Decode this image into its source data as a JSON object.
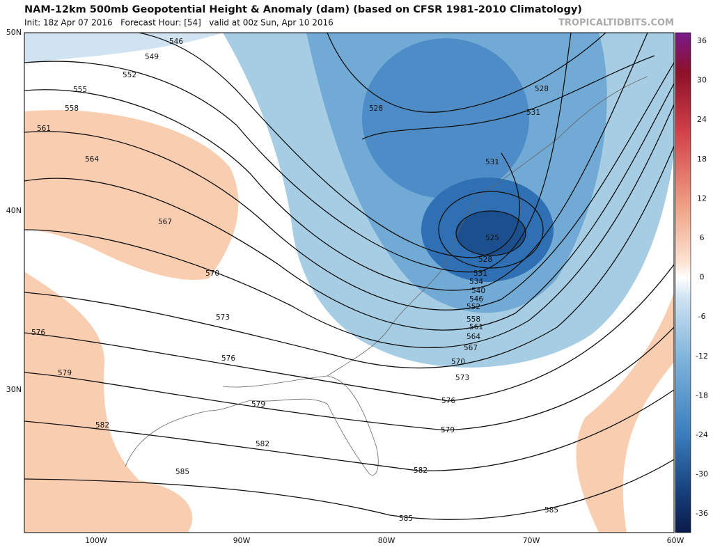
{
  "header": {
    "title": "NAM-12km 500mb Geopotential Height & Anomaly (dam) (based on CFSR 1981-2010 Climatology)",
    "subtitle": "Init: 18z Apr 07 2016   Forecast Hour: [54]   valid at 00z Sun, Apr 10 2016",
    "source": "TROPICALTIDBITS.COM"
  },
  "lat_labels": [
    "50N",
    "40N",
    "30N"
  ],
  "lon_labels": [
    "100W",
    "90W",
    "80W",
    "70W",
    "60W"
  ],
  "colorbar_ticks": [
    36,
    30,
    24,
    18,
    12,
    6,
    0,
    -6,
    -12,
    -18,
    -24,
    -30,
    -36
  ],
  "contour_labels": [
    546,
    549,
    552,
    555,
    558,
    561,
    564,
    567,
    570,
    573,
    576,
    579,
    582,
    585,
    576,
    579,
    582,
    585,
    585,
    582,
    579,
    576,
    573,
    570,
    567,
    564,
    561,
    558,
    552,
    546,
    540,
    534,
    531,
    528,
    525,
    531,
    528,
    528,
    531
  ]
}
